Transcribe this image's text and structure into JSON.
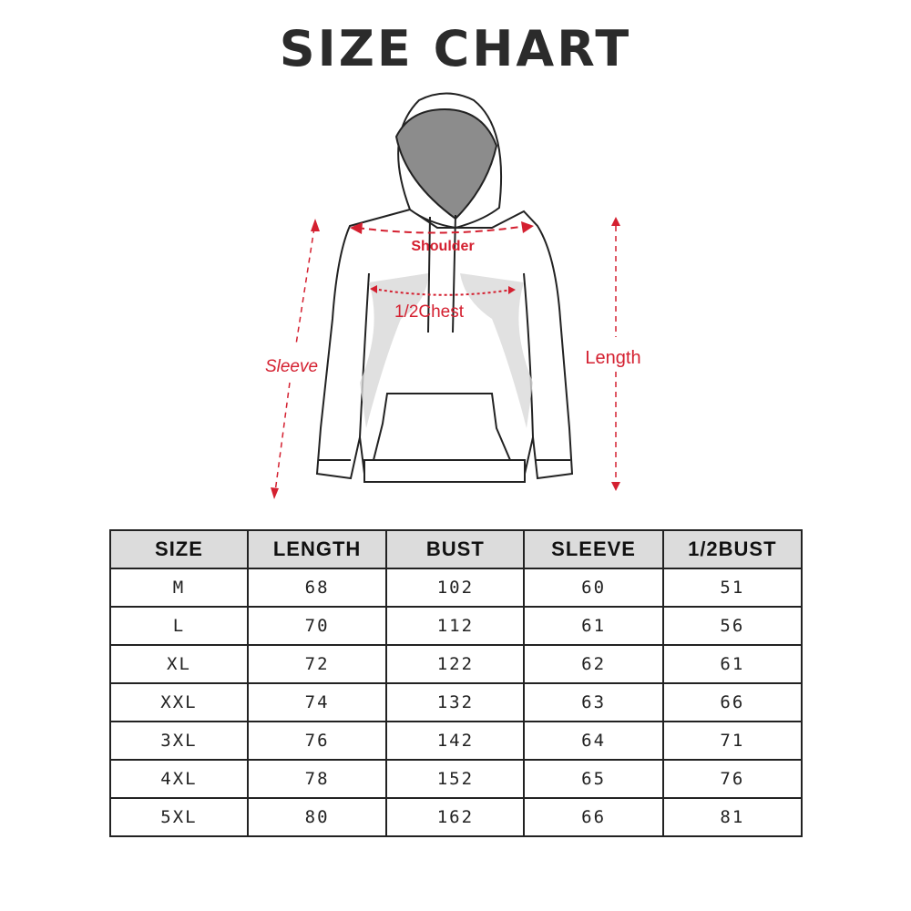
{
  "title": "SIZE CHART",
  "diagram": {
    "labels": {
      "shoulder": "Shoulder",
      "chest": "1/2Chest",
      "sleeve": "Sleeve",
      "length": "Length"
    },
    "accent_color": "#d42030"
  },
  "table": {
    "headers": [
      "SIZE",
      "LENGTH",
      "BUST",
      "SLEEVE",
      "1/2BUST"
    ],
    "rows": [
      [
        "M",
        "68",
        "102",
        "60",
        "51"
      ],
      [
        "L",
        "70",
        "112",
        "61",
        "56"
      ],
      [
        "XL",
        "72",
        "122",
        "62",
        "61"
      ],
      [
        "XXL",
        "74",
        "132",
        "63",
        "66"
      ],
      [
        "3XL",
        "76",
        "142",
        "64",
        "71"
      ],
      [
        "4XL",
        "78",
        "152",
        "65",
        "76"
      ],
      [
        "5XL",
        "80",
        "162",
        "66",
        "81"
      ]
    ]
  }
}
